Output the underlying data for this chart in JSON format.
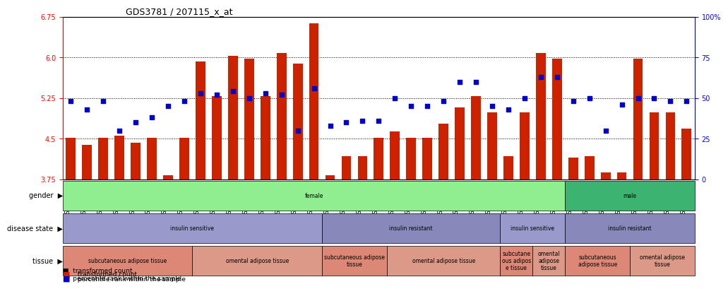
{
  "title": "GDS3781 / 207115_x_at",
  "samples": [
    "GSM523846",
    "GSM523847",
    "GSM523848",
    "GSM523850",
    "GSM523851",
    "GSM523852",
    "GSM523854",
    "GSM523855",
    "GSM523866",
    "GSM523867",
    "GSM523868",
    "GSM523870",
    "GSM523871",
    "GSM523872",
    "GSM523874",
    "GSM523875",
    "GSM523837",
    "GSM523839",
    "GSM523840",
    "GSM523841",
    "GSM523845",
    "GSM523856",
    "GSM523857",
    "GSM523859",
    "GSM523860",
    "GSM523861",
    "GSM523865",
    "GSM523849",
    "GSM523853",
    "GSM523869",
    "GSM523873",
    "GSM523838",
    "GSM523842",
    "GSM523843",
    "GSM523844",
    "GSM523858",
    "GSM523862",
    "GSM523863",
    "GSM523864"
  ],
  "bar_values": [
    4.52,
    4.38,
    4.52,
    4.55,
    4.42,
    4.52,
    3.83,
    4.52,
    5.92,
    5.28,
    6.03,
    5.98,
    5.28,
    6.08,
    5.88,
    6.62,
    3.83,
    4.18,
    4.18,
    4.52,
    4.63,
    4.52,
    4.52,
    4.78,
    5.08,
    5.28,
    4.98,
    4.18,
    4.98,
    6.08,
    5.98,
    4.15,
    4.18,
    3.88,
    3.88,
    5.98,
    4.98,
    4.98,
    4.68
  ],
  "percentile_values": [
    48,
    43,
    48,
    30,
    35,
    38,
    45,
    48,
    53,
    52,
    54,
    50,
    53,
    52,
    30,
    56,
    33,
    35,
    36,
    36,
    50,
    45,
    45,
    48,
    60,
    60,
    45,
    43,
    50,
    63,
    63,
    48,
    50,
    30,
    46,
    50,
    50,
    48,
    48
  ],
  "ylim_left": [
    3.75,
    6.75
  ],
  "ylim_right": [
    0,
    100
  ],
  "yticks_left": [
    3.75,
    4.5,
    5.25,
    6.0,
    6.75
  ],
  "yticks_right": [
    0,
    25,
    50,
    75,
    100
  ],
  "bar_color": "#CC2200",
  "dot_color": "#0000CC",
  "bg_color": "#FFFFFF",
  "grid_color": "#000000",
  "gender_colors": {
    "female": "#90EE90",
    "male": "#32CD32"
  },
  "disease_colors": {
    "insulin_sensitive": "#9999DD",
    "insulin_resistant": "#8888CC"
  },
  "tissue_colors": {
    "subcutaneous": "#DD8888",
    "omental": "#DD9999"
  },
  "gender_row": [
    {
      "label": "female",
      "start": 0,
      "end": 31,
      "color": "#90EE90"
    },
    {
      "label": "male",
      "start": 31,
      "end": 39,
      "color": "#3CB371"
    }
  ],
  "disease_row": [
    {
      "label": "insulin sensitive",
      "start": 0,
      "end": 16,
      "color": "#9999CC"
    },
    {
      "label": "insulin resistant",
      "start": 16,
      "end": 27,
      "color": "#8888BB"
    },
    {
      "label": "insulin sensitive",
      "start": 27,
      "end": 31,
      "color": "#9999CC"
    },
    {
      "label": "insulin resistant",
      "start": 31,
      "end": 39,
      "color": "#8888BB"
    }
  ],
  "tissue_row": [
    {
      "label": "subcutaneous adipose tissue",
      "start": 0,
      "end": 8,
      "color": "#DD8877"
    },
    {
      "label": "omental adipose tissue",
      "start": 8,
      "end": 16,
      "color": "#DD9988"
    },
    {
      "label": "subcutaneous adipose\ntissue",
      "start": 16,
      "end": 20,
      "color": "#DD8877"
    },
    {
      "label": "omental adipose tissue",
      "start": 20,
      "end": 27,
      "color": "#DD9988"
    },
    {
      "label": "subcutane\nous adipos\ne tissue",
      "start": 27,
      "end": 29,
      "color": "#DD8877"
    },
    {
      "label": "omental\nadipose\ntissue",
      "start": 29,
      "end": 31,
      "color": "#DD9988"
    },
    {
      "label": "subcutaneous\nadipose tissue",
      "start": 31,
      "end": 35,
      "color": "#DD8877"
    },
    {
      "label": "omental adipose\ntissue",
      "start": 35,
      "end": 39,
      "color": "#DD9988"
    }
  ]
}
